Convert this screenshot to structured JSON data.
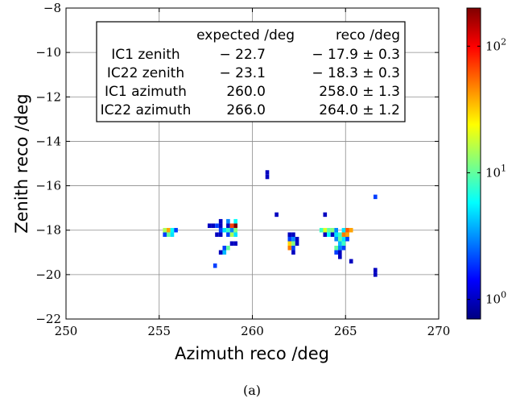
{
  "chart_data": {
    "type": "heatmap",
    "xlabel": "Azimuth reco /deg",
    "ylabel": "Zenith reco /deg",
    "xlim": [
      250,
      270
    ],
    "ylim": [
      -22,
      -8
    ],
    "xticks": [
      "250",
      "255",
      "260",
      "265",
      "270"
    ],
    "yticks": [
      "−22",
      "−20",
      "−18",
      "−16",
      "−14",
      "−12",
      "−10",
      "−8"
    ],
    "grid": true,
    "colorbar": {
      "scale": "log",
      "range": [
        0.7,
        200
      ],
      "ticks": [
        {
          "base": "10",
          "exp": "0",
          "value": 1
        },
        {
          "base": "10",
          "exp": "1",
          "value": 10
        },
        {
          "base": "10",
          "exp": "2",
          "value": 100
        }
      ],
      "colormap": [
        "#000080",
        "#0000ff",
        "#0080ff",
        "#00ffff",
        "#80ff80",
        "#ffff00",
        "#ff8000",
        "#ff0000",
        "#800000"
      ]
    },
    "bin_width": 0.2,
    "bin_height": 0.2,
    "cells": [
      [
        255.3,
        -18.0,
        15
      ],
      [
        255.5,
        -18.0,
        40
      ],
      [
        255.7,
        -18.0,
        6
      ],
      [
        255.9,
        -18.0,
        2
      ],
      [
        255.3,
        -18.2,
        2
      ],
      [
        255.5,
        -18.2,
        10
      ],
      [
        255.7,
        -18.2,
        5
      ],
      [
        257.7,
        -17.8,
        1
      ],
      [
        257.9,
        -17.8,
        1
      ],
      [
        258.1,
        -17.8,
        2
      ],
      [
        258.3,
        -17.8,
        1
      ],
      [
        258.3,
        -17.6,
        1
      ],
      [
        258.7,
        -17.6,
        3
      ],
      [
        259.1,
        -17.6,
        6
      ],
      [
        258.7,
        -17.8,
        1
      ],
      [
        258.9,
        -17.8,
        70
      ],
      [
        259.1,
        -17.8,
        200
      ],
      [
        258.3,
        -18.0,
        2
      ],
      [
        258.5,
        -18.0,
        5
      ],
      [
        258.7,
        -18.0,
        8
      ],
      [
        258.9,
        -18.0,
        3
      ],
      [
        259.1,
        -18.0,
        12
      ],
      [
        258.1,
        -18.2,
        1
      ],
      [
        258.3,
        -18.2,
        1
      ],
      [
        258.7,
        -18.2,
        2
      ],
      [
        258.9,
        -18.2,
        15
      ],
      [
        259.1,
        -18.2,
        5
      ],
      [
        258.9,
        -18.6,
        1
      ],
      [
        259.1,
        -18.6,
        1
      ],
      [
        258.5,
        -18.8,
        2
      ],
      [
        258.7,
        -18.8,
        10
      ],
      [
        258.3,
        -19.0,
        1
      ],
      [
        258.5,
        -19.0,
        4
      ],
      [
        258.0,
        -19.6,
        2
      ],
      [
        260.8,
        -15.4,
        1
      ],
      [
        260.8,
        -15.6,
        1
      ],
      [
        261.3,
        -17.3,
        1
      ],
      [
        262.0,
        -18.2,
        1
      ],
      [
        262.2,
        -18.2,
        1
      ],
      [
        262.0,
        -18.4,
        2
      ],
      [
        262.2,
        -18.4,
        3
      ],
      [
        262.4,
        -18.4,
        1
      ],
      [
        262.0,
        -18.6,
        30
      ],
      [
        262.2,
        -18.6,
        12
      ],
      [
        262.4,
        -18.6,
        1
      ],
      [
        262.0,
        -18.8,
        50
      ],
      [
        262.2,
        -18.8,
        2
      ],
      [
        262.2,
        -19.0,
        1
      ],
      [
        263.9,
        -17.3,
        1
      ],
      [
        263.7,
        -18.0,
        8
      ],
      [
        263.9,
        -18.0,
        20
      ],
      [
        264.1,
        -18.0,
        10
      ],
      [
        264.3,
        -18.0,
        12
      ],
      [
        264.5,
        -18.0,
        3
      ],
      [
        264.9,
        -18.0,
        5
      ],
      [
        265.1,
        -18.0,
        60
      ],
      [
        265.3,
        -18.0,
        40
      ],
      [
        263.9,
        -18.2,
        1
      ],
      [
        264.1,
        -18.2,
        6
      ],
      [
        264.3,
        -18.2,
        1
      ],
      [
        264.5,
        -18.2,
        5
      ],
      [
        264.7,
        -18.2,
        8
      ],
      [
        264.9,
        -18.2,
        50
      ],
      [
        265.1,
        -18.2,
        40
      ],
      [
        264.5,
        -18.4,
        3
      ],
      [
        264.7,
        -18.4,
        10
      ],
      [
        264.9,
        -18.4,
        5
      ],
      [
        265.1,
        -18.4,
        2
      ],
      [
        264.7,
        -18.6,
        4
      ],
      [
        264.9,
        -18.6,
        8
      ],
      [
        264.5,
        -18.8,
        10
      ],
      [
        264.7,
        -18.8,
        3
      ],
      [
        264.9,
        -18.8,
        2
      ],
      [
        264.5,
        -19.0,
        2
      ],
      [
        264.7,
        -19.0,
        1
      ],
      [
        264.7,
        -19.2,
        1
      ],
      [
        265.3,
        -19.4,
        1
      ],
      [
        266.6,
        -16.5,
        2
      ],
      [
        266.6,
        -19.8,
        1
      ],
      [
        266.6,
        -20.0,
        1
      ]
    ],
    "legend_table": {
      "header": [
        "",
        "expected /deg",
        "reco /deg"
      ],
      "rows": [
        [
          "IC1 zenith",
          "− 22.7",
          "− 17.9 ± 0.3"
        ],
        [
          "IC22 zenith",
          "− 23.1",
          "− 18.3 ± 0.3"
        ],
        [
          "IC1 azimuth",
          "260.0",
          "258.0 ± 1.3"
        ],
        [
          "IC22 azimuth",
          "266.0",
          "264.0 ± 1.2"
        ]
      ]
    }
  },
  "caption": "(a)"
}
